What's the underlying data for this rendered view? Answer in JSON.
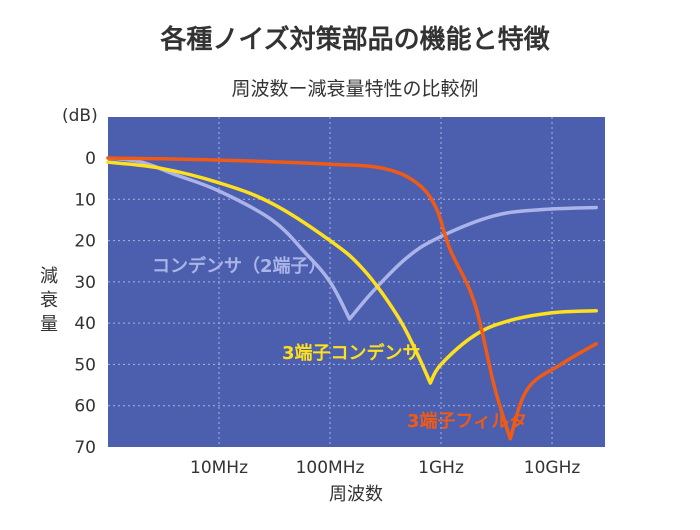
{
  "chart_data": {
    "type": "line",
    "title": "各種ノイズ対策部品の機能と特徴",
    "subtitle": "周波数ー減衰量特性の比較例",
    "xlabel": "周波数",
    "ylabel": "減衰量",
    "yunit": "(dB)",
    "x_scale": "log",
    "x_range_hz": [
      1000000,
      30000000000
    ],
    "x_ticks": [
      {
        "value": 10000000,
        "label": "10MHz"
      },
      {
        "value": 100000000,
        "label": "100MHz"
      },
      {
        "value": 1000000000,
        "label": "1GHz"
      },
      {
        "value": 10000000000,
        "label": "10GHz"
      }
    ],
    "y_range": [
      -3,
      70
    ],
    "y_inverted": true,
    "y_ticks": [
      0,
      10,
      20,
      30,
      40,
      50,
      60,
      70
    ],
    "grid": true,
    "background": "#4c5fae",
    "series": [
      {
        "name": "コンデンサ（2端子）",
        "color": "#aab4e8",
        "points": [
          [
            1000000,
            0
          ],
          [
            2000000,
            1
          ],
          [
            4000000,
            4
          ],
          [
            10000000,
            8
          ],
          [
            30000000,
            15
          ],
          [
            60000000,
            23
          ],
          [
            100000000,
            30
          ],
          [
            150000000,
            39
          ],
          [
            250000000,
            32
          ],
          [
            500000000,
            24
          ],
          [
            1000000000,
            19
          ],
          [
            3000000000,
            14
          ],
          [
            8000000000,
            12.5
          ],
          [
            25000000000,
            12
          ]
        ]
      },
      {
        "name": "3端子コンデンサ",
        "color": "#ffe01e",
        "points": [
          [
            1000000,
            1
          ],
          [
            3000000,
            2.5
          ],
          [
            10000000,
            6
          ],
          [
            30000000,
            11
          ],
          [
            100000000,
            20
          ],
          [
            200000000,
            27
          ],
          [
            400000000,
            38
          ],
          [
            600000000,
            47
          ],
          [
            800000000,
            54.5
          ],
          [
            1000000000,
            50
          ],
          [
            2000000000,
            43
          ],
          [
            4000000000,
            39.5
          ],
          [
            10000000000,
            37.5
          ],
          [
            25000000000,
            37
          ]
        ]
      },
      {
        "name": "3端子フィルタ",
        "color": "#f05a14",
        "points": [
          [
            1000000,
            0
          ],
          [
            10000000,
            0.5
          ],
          [
            100000000,
            1.5
          ],
          [
            300000000,
            2.5
          ],
          [
            600000000,
            6
          ],
          [
            900000000,
            12
          ],
          [
            1200000000,
            22
          ],
          [
            2000000000,
            35
          ],
          [
            3000000000,
            55
          ],
          [
            4200000000,
            68
          ],
          [
            6000000000,
            56
          ],
          [
            12000000000,
            50
          ],
          [
            25000000000,
            45
          ]
        ]
      }
    ]
  }
}
